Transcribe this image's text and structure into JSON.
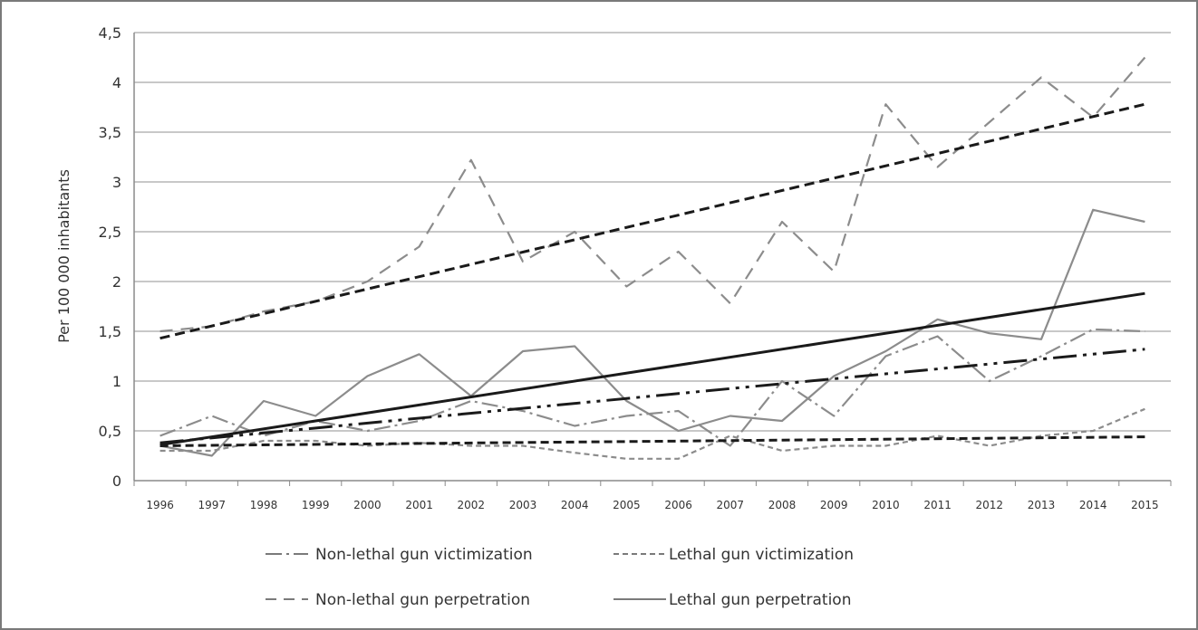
{
  "chart_data": {
    "type": "line",
    "ylabel": "Per 100 000 inhabitants",
    "xlabel": "",
    "title": "",
    "ylim": [
      0,
      4.5
    ],
    "y_ticks": [
      "0",
      "0,5",
      "1",
      "1,5",
      "2",
      "2,5",
      "3",
      "3,5",
      "4",
      "4,5"
    ],
    "categories": [
      "1996",
      "1997",
      "1998",
      "1999",
      "2000",
      "2001",
      "2002",
      "2003",
      "2004",
      "2005",
      "2006",
      "2007",
      "2008",
      "2009",
      "2010",
      "2011",
      "2012",
      "2013",
      "2014",
      "2015"
    ],
    "grid": true,
    "legend_position": "bottom",
    "series": [
      {
        "name": "Non-lethal gun victimization",
        "style": "dash-dot",
        "values": [
          0.45,
          0.65,
          0.45,
          0.6,
          0.5,
          0.6,
          0.8,
          0.7,
          0.55,
          0.65,
          0.7,
          0.35,
          1.0,
          0.65,
          1.25,
          1.45,
          1.0,
          1.25,
          1.52,
          1.5
        ]
      },
      {
        "name": "Lethal gun victimization",
        "style": "dotted",
        "values": [
          0.3,
          0.3,
          0.4,
          0.4,
          0.35,
          0.38,
          0.35,
          0.35,
          0.28,
          0.22,
          0.22,
          0.45,
          0.3,
          0.35,
          0.35,
          0.45,
          0.35,
          0.45,
          0.5,
          0.72
        ]
      },
      {
        "name": "Non-lethal gun perpetration",
        "style": "long-dash",
        "values": [
          1.5,
          1.55,
          1.7,
          1.8,
          2.0,
          2.35,
          3.22,
          2.2,
          2.5,
          1.95,
          2.3,
          1.78,
          2.6,
          2.1,
          3.78,
          3.15,
          3.6,
          4.05,
          3.65,
          4.25
        ]
      },
      {
        "name": "Lethal gun perpetration",
        "style": "solid",
        "values": [
          0.35,
          0.25,
          0.8,
          0.65,
          1.05,
          1.27,
          0.85,
          1.3,
          1.35,
          0.8,
          0.5,
          0.65,
          0.6,
          1.05,
          1.3,
          1.62,
          1.48,
          1.42,
          2.72,
          2.6
        ]
      }
    ],
    "trendlines": [
      {
        "of": "Non-lethal gun victimization",
        "style": "bold-dash-dot",
        "start": 0.38,
        "end": 1.32
      },
      {
        "of": "Lethal gun victimization",
        "style": "bold-dotted",
        "start": 0.35,
        "end": 0.44
      },
      {
        "of": "Non-lethal gun perpetration",
        "style": "bold-dash",
        "start": 1.43,
        "end": 3.78
      },
      {
        "of": "Lethal gun perpetration",
        "style": "bold-solid",
        "start": 0.36,
        "end": 1.88
      }
    ],
    "colors": {
      "series": "#8c8c8c",
      "trend": "#1a1a1a",
      "grid": "#c8c8c8",
      "axis": "#8a8a8a"
    }
  }
}
